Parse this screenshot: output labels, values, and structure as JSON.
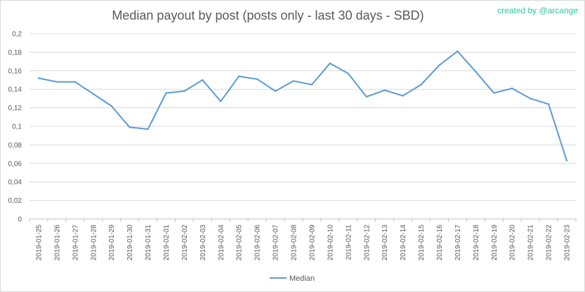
{
  "title": "Median payout by post (posts only - last 30 days - SBD)",
  "credit": "created by @arcange",
  "colors": {
    "series": "#5b9bd5",
    "credit": "#2ec4a6"
  },
  "chart_data": {
    "type": "line",
    "title": "Median payout by post (posts only - last 30 days - SBD)",
    "xlabel": "",
    "ylabel": "",
    "ylim": [
      0,
      0.2
    ],
    "y_ticks": [
      "0",
      "0,02",
      "0,04",
      "0,06",
      "0,08",
      "0,1",
      "0,12",
      "0,14",
      "0,16",
      "0,18",
      "0,2"
    ],
    "grid": true,
    "legend": "bottom",
    "categories": [
      "2019-01-25",
      "2019-01-26",
      "2019-01-27",
      "2019-01-28",
      "2019-01-29",
      "2019-01-30",
      "2019-01-31",
      "2019-02-01",
      "2019-02-02",
      "2019-02-03",
      "2019-02-04",
      "2019-02-05",
      "2019-02-06",
      "2019-02-07",
      "2019-02-08",
      "2019-02-09",
      "2019-02-10",
      "2019-02-11",
      "2019-02-12",
      "2019-02-13",
      "2019-02-14",
      "2019-02-15",
      "2019-02-16",
      "2019-02-17",
      "2019-02-18",
      "2019-02-19",
      "2019-02-20",
      "2019-02-21",
      "2019-02-22",
      "2019-02-23"
    ],
    "series": [
      {
        "name": "Median",
        "values": [
          0.152,
          0.148,
          0.148,
          0.135,
          0.122,
          0.099,
          0.097,
          0.136,
          0.138,
          0.15,
          0.127,
          0.154,
          0.151,
          0.138,
          0.149,
          0.145,
          0.168,
          0.157,
          0.132,
          0.139,
          0.133,
          0.145,
          0.166,
          0.181,
          0.159,
          0.136,
          0.141,
          0.13,
          0.124,
          0.063
        ]
      }
    ]
  }
}
